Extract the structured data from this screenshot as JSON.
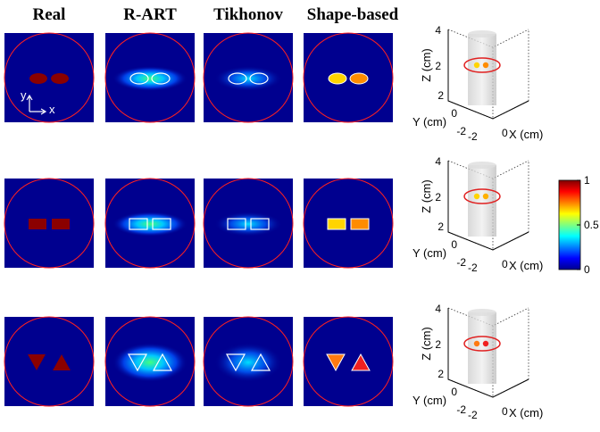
{
  "columns": [
    "Real",
    "R-ART",
    "Tikhonov",
    "Shape-based"
  ],
  "axis_hint": {
    "y": "y",
    "x": "x"
  },
  "plot3d": {
    "z_label": "Z (cm)",
    "y_label": "Y (cm)",
    "x_label": "X (cm)",
    "z_ticks": [
      "4",
      "2"
    ],
    "y_ticks": [
      "2",
      "0",
      "-2"
    ],
    "x_ticks": [
      "-2",
      "0"
    ]
  },
  "colorbar": {
    "ticks": [
      "1",
      "0.5",
      "0"
    ]
  }
}
